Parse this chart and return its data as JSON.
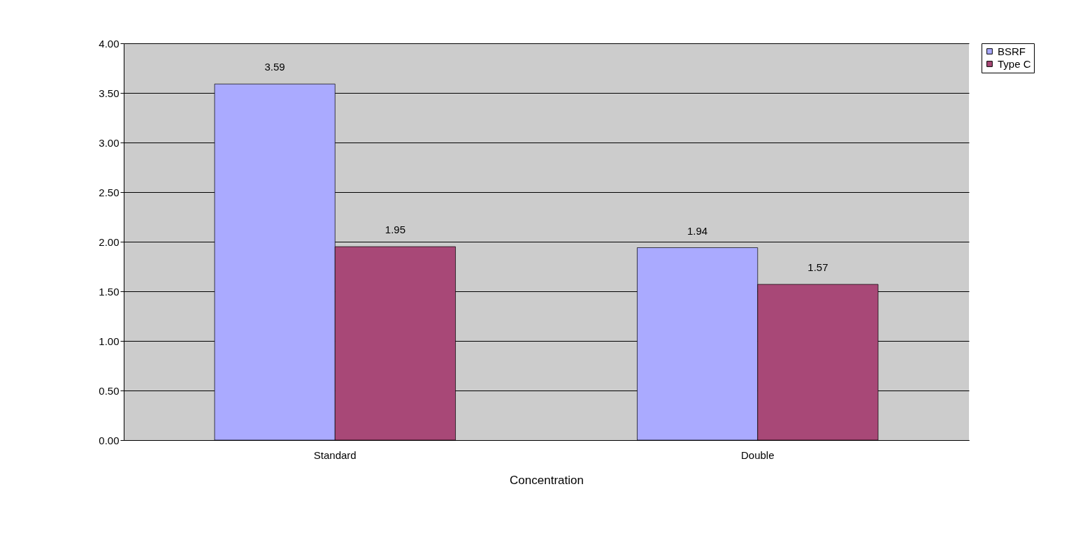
{
  "chart_data": {
    "type": "bar",
    "xlabel": "Concentration",
    "categories": [
      "Standard",
      "Double"
    ],
    "series": [
      {
        "name": "BSRF",
        "color": "#aaaaff",
        "values": [
          3.59,
          1.94
        ]
      },
      {
        "name": "Type C",
        "color": "#a84877",
        "values": [
          1.95,
          1.57
        ]
      }
    ],
    "ylim": [
      0,
      4
    ],
    "yticks": [
      {
        "value": 0,
        "label": "0.00"
      },
      {
        "value": 0.5,
        "label": "0.50"
      },
      {
        "value": 1,
        "label": "1.00"
      },
      {
        "value": 1.5,
        "label": "1.50"
      },
      {
        "value": 2,
        "label": "2.00"
      },
      {
        "value": 2.5,
        "label": "2.50"
      },
      {
        "value": 3,
        "label": "3.00"
      },
      {
        "value": 3.5,
        "label": "3.50"
      },
      {
        "value": 4,
        "label": "4.00"
      }
    ],
    "grid": "y",
    "legend": "right",
    "data_labels": true
  }
}
